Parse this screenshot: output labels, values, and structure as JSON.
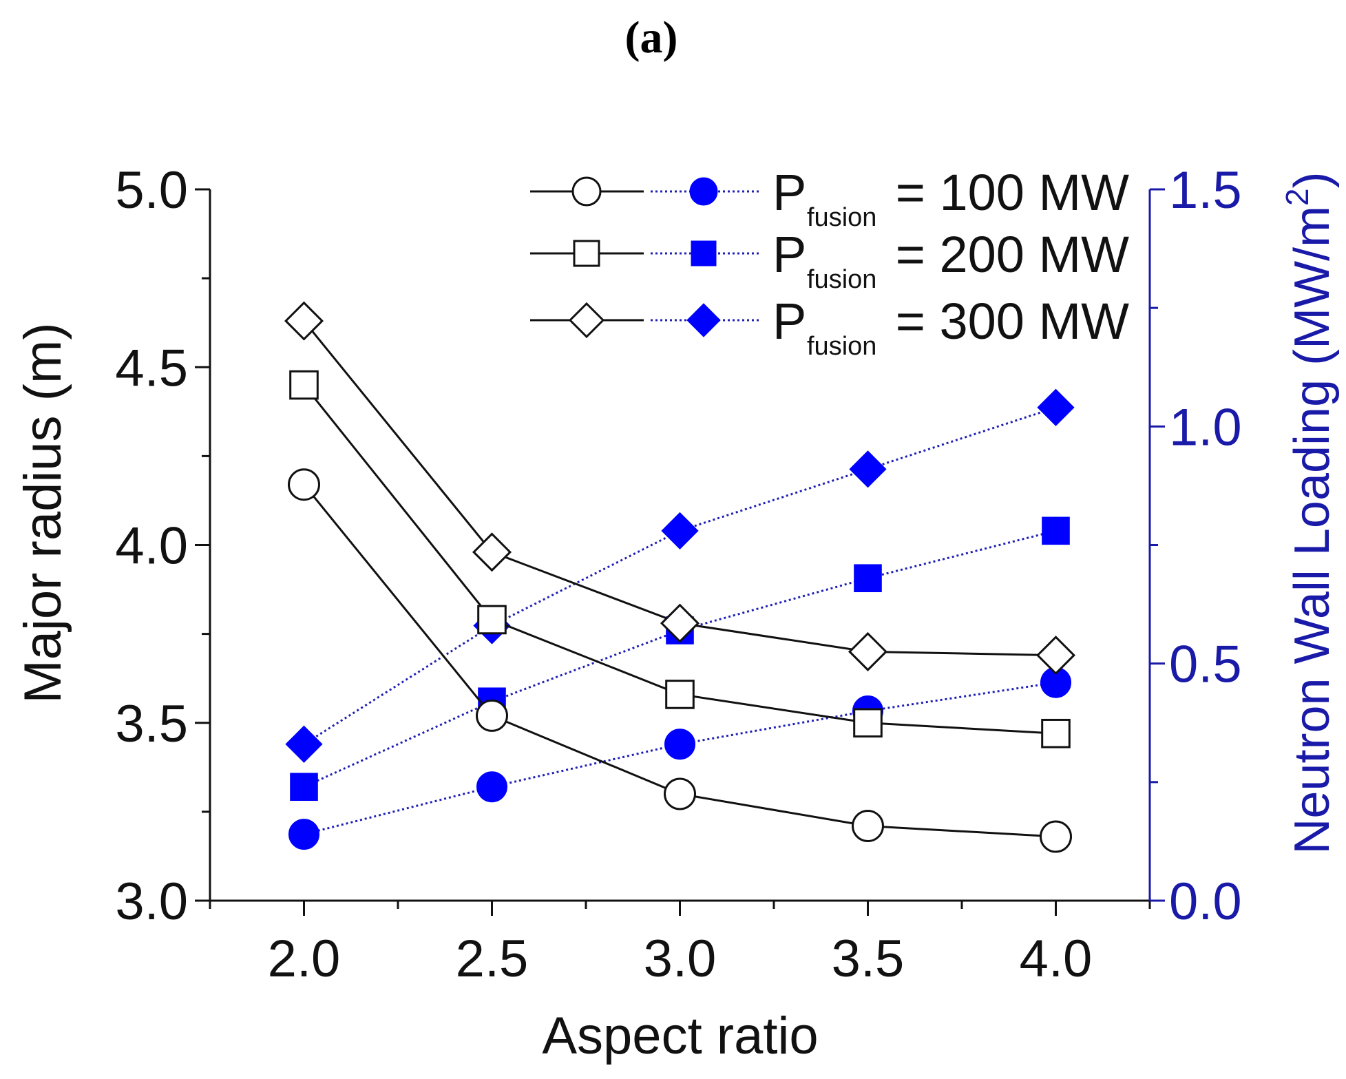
{
  "panel_label": "(a)",
  "colors": {
    "left_axis": "#111111",
    "right_axis": "#1a1aa8",
    "series_right": "#0000ff",
    "dotted_line": "#1f1fb5"
  },
  "chart_data": {
    "type": "line",
    "title": "",
    "xlabel": "Aspect ratio",
    "ylabel_left": "Major radius (m)",
    "ylabel_right": {
      "main": "Neutron Wall Loading (MW/m",
      "superscript": "2",
      "close": ")"
    },
    "xlim": [
      1.75,
      4.25
    ],
    "ylim_left": [
      3.0,
      5.0
    ],
    "ylim_right": [
      0.0,
      1.5
    ],
    "x": [
      2.0,
      2.5,
      3.0,
      3.5,
      4.0
    ],
    "x_ticks": [
      2.0,
      2.5,
      3.0,
      3.5,
      4.0
    ],
    "x_tick_labels": [
      "2.0",
      "2.5",
      "3.0",
      "3.5",
      "4.0"
    ],
    "y_left_ticks": [
      3.0,
      3.5,
      4.0,
      4.5,
      5.0
    ],
    "y_left_tick_labels": [
      "3.0",
      "3.5",
      "4.0",
      "4.5",
      "5.0"
    ],
    "y_right_ticks": [
      0.0,
      0.5,
      1.0,
      1.5
    ],
    "y_right_tick_labels": [
      "0.0",
      "0.5",
      "1.0",
      "1.5"
    ],
    "legend_position": "top-right",
    "series": [
      {
        "name": "Major radius, Pfusion = 100 MW",
        "axis": "left",
        "marker": "circle",
        "filled": false,
        "line": "solid",
        "values": [
          4.17,
          3.52,
          3.3,
          3.21,
          3.18
        ]
      },
      {
        "name": "Major radius, Pfusion = 200 MW",
        "axis": "left",
        "marker": "square",
        "filled": false,
        "line": "solid",
        "values": [
          4.45,
          3.79,
          3.58,
          3.5,
          3.47
        ]
      },
      {
        "name": "Major radius, Pfusion = 300 MW",
        "axis": "left",
        "marker": "diamond",
        "filled": false,
        "line": "solid",
        "values": [
          4.63,
          3.98,
          3.78,
          3.7,
          3.69
        ]
      },
      {
        "name": "Neutron wall loading, Pfusion = 100 MW",
        "axis": "right",
        "marker": "circle",
        "filled": true,
        "line": "dotted",
        "values": [
          0.14,
          0.24,
          0.33,
          0.4,
          0.46
        ]
      },
      {
        "name": "Neutron wall loading, Pfusion = 200 MW",
        "axis": "right",
        "marker": "square",
        "filled": true,
        "line": "dotted",
        "values": [
          0.24,
          0.42,
          0.57,
          0.68,
          0.78
        ]
      },
      {
        "name": "Neutron wall loading, Pfusion = 300 MW",
        "axis": "right",
        "marker": "diamond",
        "filled": true,
        "line": "dotted",
        "values": [
          0.33,
          0.58,
          0.78,
          0.91,
          1.04
        ]
      }
    ],
    "legend": [
      {
        "marker": "circle",
        "p": "P",
        "sub": "fusion",
        "value": "= 100 MW"
      },
      {
        "marker": "square",
        "p": "P",
        "sub": "fusion",
        "value": "= 200 MW"
      },
      {
        "marker": "diamond",
        "p": "P",
        "sub": "fusion",
        "value": "= 300 MW"
      }
    ]
  }
}
